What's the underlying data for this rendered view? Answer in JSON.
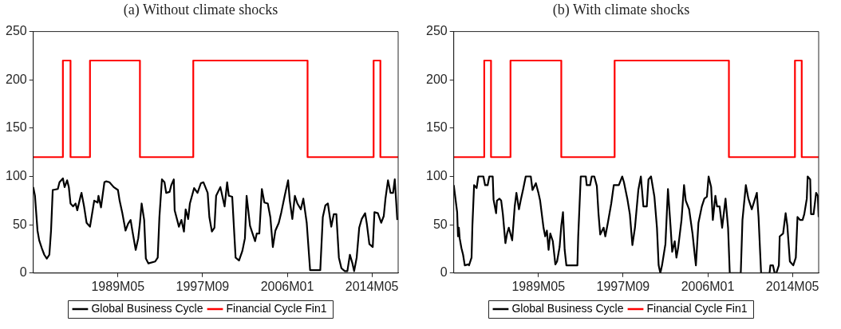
{
  "chart_data": [
    {
      "type": "line",
      "title": "(a) Without climate shocks",
      "xlim": [
        "1981-01",
        "2016-12"
      ],
      "xticks": [
        {
          "value": "1989-05",
          "label": "1989M05"
        },
        {
          "value": "1997-09",
          "label": "1997M09"
        },
        {
          "value": "2006-01",
          "label": "2006M01"
        },
        {
          "value": "2014-05",
          "label": "2014M05"
        }
      ],
      "ylim": [
        0,
        250
      ],
      "yticks": [
        0,
        50,
        100,
        150,
        200,
        250
      ],
      "grid": false,
      "legend": "bottom",
      "series": [
        {
          "name": "Global Business Cycle",
          "color": "#000000",
          "type": "line",
          "x": [
            "1981-01",
            "1981-03",
            "1981-06",
            "1981-08",
            "1981-11",
            "1982-02",
            "1982-05",
            "1982-08",
            "1982-10",
            "1982-12",
            "1983-06",
            "1983-08",
            "1983-12",
            "1984-02",
            "1984-05",
            "1984-07",
            "1984-09",
            "1984-12",
            "1985-03",
            "1985-05",
            "1985-09",
            "1985-10",
            "1986-01",
            "1986-04",
            "1986-08",
            "1987-01",
            "1987-05",
            "1987-06",
            "1987-09",
            "1988-01",
            "1988-03",
            "1988-07",
            "1988-12",
            "1989-05",
            "1989-07",
            "1989-10",
            "1990-02",
            "1990-05",
            "1990-08",
            "1990-10",
            "1991-02",
            "1991-05",
            "1991-07",
            "1991-09",
            "1991-12",
            "1992-02",
            "1992-05",
            "1993-01",
            "1993-04",
            "1993-06",
            "1993-09",
            "1993-12",
            "1994-02",
            "1994-06",
            "1994-08",
            "1994-11",
            "1994-12",
            "1995-03",
            "1995-05",
            "1995-08",
            "1995-11",
            "1996-01",
            "1996-04",
            "1996-06",
            "1996-11",
            "1997-03",
            "1997-07",
            "1997-10",
            "1998-03",
            "1998-05",
            "1998-08",
            "1998-11",
            "1999-01",
            "1999-06",
            "1999-11",
            "2000-02",
            "2000-04",
            "2000-08",
            "2000-12",
            "2001-04",
            "2001-08",
            "2001-11",
            "2002-01",
            "2002-05",
            "2002-08",
            "2002-11",
            "2003-01",
            "2003-04",
            "2003-07",
            "2003-10",
            "2004-02",
            "2004-05",
            "2004-08",
            "2004-11",
            "2005-03",
            "2005-06",
            "2005-10",
            "2006-02",
            "2006-04",
            "2006-07",
            "2006-10",
            "2007-01",
            "2007-05",
            "2007-08",
            "2007-12",
            "2008-04",
            "2009-04",
            "2009-07",
            "2009-10",
            "2010-01",
            "2010-05",
            "2010-08",
            "2010-11",
            "2011-02",
            "2011-05",
            "2011-09",
            "2011-12",
            "2012-03",
            "2012-06",
            "2012-08",
            "2012-11",
            "2013-02",
            "2013-05",
            "2013-09",
            "2013-11",
            "2014-02",
            "2014-06",
            "2014-08",
            "2014-12",
            "2015-04",
            "2015-07",
            "2015-09",
            "2015-12",
            "2016-03",
            "2016-06",
            "2016-08",
            "2016-11"
          ],
          "values": [
            89,
            80,
            44,
            34,
            26,
            19,
            15,
            19,
            44,
            86,
            87,
            94,
            98,
            89,
            96,
            89,
            72,
            69,
            72,
            65,
            80,
            83,
            69,
            52,
            48,
            75,
            73,
            80,
            68,
            94,
            95,
            94,
            89,
            86,
            75,
            63,
            44,
            51,
            55,
            44,
            24,
            36,
            52,
            72,
            55,
            15,
            10,
            12,
            16,
            58,
            97,
            94,
            83,
            84,
            91,
            97,
            65,
            55,
            48,
            55,
            43,
            66,
            56,
            72,
            88,
            83,
            93,
            94,
            83,
            58,
            43,
            47,
            80,
            89,
            69,
            94,
            80,
            79,
            16,
            13,
            23,
            36,
            80,
            49,
            41,
            33,
            41,
            41,
            87,
            73,
            72,
            58,
            27,
            44,
            52,
            63,
            80,
            96,
            75,
            56,
            80,
            72,
            66,
            77,
            52,
            3,
            3,
            58,
            70,
            72,
            48,
            61,
            61,
            16,
            5,
            2,
            2,
            19,
            10,
            2,
            16,
            47,
            56,
            62,
            51,
            30,
            27,
            63,
            62,
            52,
            59,
            77,
            96,
            83,
            83,
            97,
            55
          ]
        },
        {
          "name": "Financial Cycle Fin1",
          "color": "#ff0000",
          "type": "step",
          "x": [
            "1981-01",
            "1983-12",
            "1984-09",
            "1986-08",
            "1991-07",
            "1996-10",
            "2008-01",
            "2014-07",
            "2015-03",
            "2016-12"
          ],
          "values": [
            120,
            220,
            120,
            220,
            120,
            220,
            120,
            220,
            120,
            120
          ]
        }
      ]
    },
    {
      "type": "line",
      "title": "(b) With climate shocks",
      "xlim": [
        "1981-01",
        "2016-12"
      ],
      "xticks": [
        {
          "value": "1989-05",
          "label": "1989M05"
        },
        {
          "value": "1997-09",
          "label": "1997M09"
        },
        {
          "value": "2006-01",
          "label": "2006M01"
        },
        {
          "value": "2014-05",
          "label": "2014M05"
        }
      ],
      "ylim": [
        0,
        250
      ],
      "yticks": [
        0,
        50,
        100,
        150,
        200,
        250
      ],
      "grid": false,
      "legend": "bottom",
      "series": [
        {
          "name": "Global Business Cycle",
          "color": "#000000",
          "type": "line",
          "x": [
            "1981-01",
            "1981-03",
            "1981-05",
            "1981-06",
            "1981-07",
            "1981-08",
            "1981-10",
            "1981-12",
            "1982-02",
            "1982-06",
            "1982-07",
            "1982-10",
            "1982-11",
            "1983-01",
            "1983-04",
            "1983-06",
            "1983-12",
            "1984-02",
            "1984-05",
            "1984-07",
            "1984-11",
            "1984-12",
            "1985-03",
            "1985-04",
            "1985-07",
            "1985-09",
            "1985-11",
            "1986-02",
            "1986-04",
            "1986-06",
            "1986-10",
            "1987-01",
            "1987-03",
            "1987-06",
            "1987-08",
            "1987-11",
            "1988-02",
            "1988-08",
            "1988-10",
            "1989-02",
            "1989-05",
            "1989-07",
            "1989-11",
            "1990-01",
            "1990-03",
            "1990-05",
            "1990-07",
            "1990-10",
            "1991-01",
            "1991-03",
            "1991-06",
            "1991-08",
            "1991-10",
            "1991-12",
            "1992-02",
            "1993-03",
            "1993-04",
            "1993-07",
            "1994-01",
            "1994-02",
            "1994-06",
            "1994-08",
            "1994-11",
            "1995-02",
            "1995-04",
            "1995-06",
            "1995-10",
            "1995-12",
            "1996-03",
            "1996-07",
            "1996-10",
            "1997-01",
            "1997-04",
            "1997-08",
            "1997-10",
            "1998-02",
            "1998-05",
            "1998-08",
            "1998-11",
            "1999-03",
            "1999-06",
            "1999-09",
            "2000-01",
            "2000-03",
            "2000-06",
            "2000-10",
            "2001-01",
            "2001-03",
            "2001-05",
            "2001-07",
            "2001-11",
            "2002-02",
            "2002-05",
            "2002-07",
            "2002-10",
            "2002-12",
            "2003-02",
            "2003-06",
            "2003-09",
            "2003-11",
            "2004-03",
            "2004-07",
            "2004-10",
            "2004-11",
            "2005-02",
            "2005-06",
            "2005-09",
            "2005-12",
            "2006-02",
            "2006-05",
            "2006-07",
            "2006-10",
            "2006-12",
            "2007-03",
            "2007-06",
            "2007-10",
            "2008-01",
            "2008-03",
            "2009-04",
            "2009-06",
            "2009-10",
            "2010-01",
            "2010-05",
            "2010-11",
            "2011-01",
            "2011-04",
            "2012-02",
            "2012-03",
            "2012-06",
            "2012-08",
            "2012-10",
            "2013-01",
            "2013-02",
            "2013-06",
            "2013-09",
            "2013-11",
            "2014-02",
            "2014-06",
            "2014-09",
            "2014-11",
            "2015-02",
            "2015-05",
            "2015-07",
            "2015-10",
            "2015-11",
            "2016-02",
            "2016-03",
            "2016-06",
            "2016-09",
            "2016-11",
            "2016-12"
          ],
          "values": [
            91,
            77,
            63,
            38,
            47,
            36,
            26,
            19,
            8,
            9,
            8,
            16,
            49,
            91,
            88,
            100,
            100,
            91,
            91,
            100,
            100,
            76,
            62,
            75,
            77,
            75,
            61,
            31,
            41,
            47,
            34,
            69,
            83,
            66,
            75,
            87,
            100,
            100,
            86,
            93,
            83,
            75,
            47,
            38,
            44,
            24,
            41,
            33,
            9,
            12,
            27,
            49,
            63,
            24,
            8,
            8,
            38,
            100,
            100,
            91,
            91,
            100,
            100,
            90,
            61,
            40,
            47,
            38,
            52,
            72,
            91,
            91,
            91,
            100,
            94,
            77,
            61,
            29,
            47,
            86,
            100,
            69,
            69,
            97,
            100,
            79,
            47,
            8,
            0,
            8,
            30,
            87,
            49,
            22,
            33,
            16,
            26,
            55,
            91,
            75,
            66,
            41,
            16,
            8,
            52,
            69,
            77,
            79,
            100,
            89,
            55,
            80,
            69,
            69,
            47,
            77,
            47,
            0,
            0,
            55,
            91,
            77,
            66,
            83,
            58,
            0,
            0,
            8,
            8,
            0,
            0,
            8,
            38,
            41,
            62,
            49,
            12,
            8,
            16,
            58,
            55,
            55,
            61,
            77,
            100,
            97,
            61,
            61,
            83,
            80,
            58
          ]
        },
        {
          "name": "Financial Cycle Fin1",
          "color": "#ff0000",
          "type": "step",
          "x": [
            "1981-01",
            "1984-01",
            "1984-09",
            "1986-08",
            "1991-08",
            "1996-11",
            "2008-02",
            "2014-08",
            "2015-04",
            "2016-12"
          ],
          "values": [
            120,
            220,
            120,
            220,
            120,
            220,
            120,
            220,
            120,
            120
          ]
        }
      ]
    }
  ]
}
